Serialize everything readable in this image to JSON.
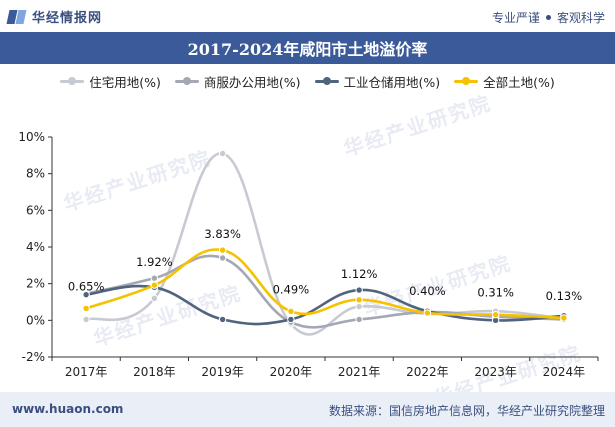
{
  "brand": {
    "name": "华经情报网",
    "tagline_left": "专业严谨",
    "tagline_right": "客观科学"
  },
  "title": "2017-2024年咸阳市土地溢价率",
  "footer": {
    "left": "www.huaon.com",
    "right": "数据来源：国信房地产信息网，华经产业研究院整理"
  },
  "watermark": "华经产业研究院",
  "chart_data": {
    "type": "line",
    "smooth": true,
    "categories": [
      "2017年",
      "2018年",
      "2019年",
      "2020年",
      "2021年",
      "2022年",
      "2023年",
      "2024年"
    ],
    "ylim": [
      -2,
      10
    ],
    "yticks": [
      "-2%",
      "0%",
      "2%",
      "4%",
      "6%",
      "8%",
      "10%"
    ],
    "ytick_values": [
      -2,
      0,
      2,
      4,
      6,
      8,
      10
    ],
    "grid": false,
    "legend_position": "top",
    "series": [
      {
        "name": "住宅用地(%)",
        "color": "#c8cad3",
        "values": [
          0.05,
          1.2,
          9.1,
          -0.2,
          0.75,
          0.35,
          0.5,
          0.1
        ],
        "labels": []
      },
      {
        "name": "商服办公用地(%)",
        "color": "#a4a8b5",
        "values": [
          1.45,
          2.3,
          3.4,
          -0.1,
          0.05,
          0.45,
          0.2,
          0.05
        ],
        "labels": []
      },
      {
        "name": "工业仓储用地(%)",
        "color": "#51647e",
        "values": [
          1.4,
          1.8,
          0.05,
          0.05,
          1.65,
          0.5,
          0.0,
          0.25
        ],
        "labels": []
      },
      {
        "name": "全部土地(%)",
        "color": "#f5c200",
        "values": [
          0.65,
          1.92,
          3.83,
          0.49,
          1.12,
          0.4,
          0.31,
          0.13
        ],
        "labels": [
          "0.65%",
          "1.92%",
          "3.83%",
          "0.49%",
          "1.12%",
          "0.40%",
          "0.31%",
          "0.13%"
        ]
      }
    ]
  }
}
